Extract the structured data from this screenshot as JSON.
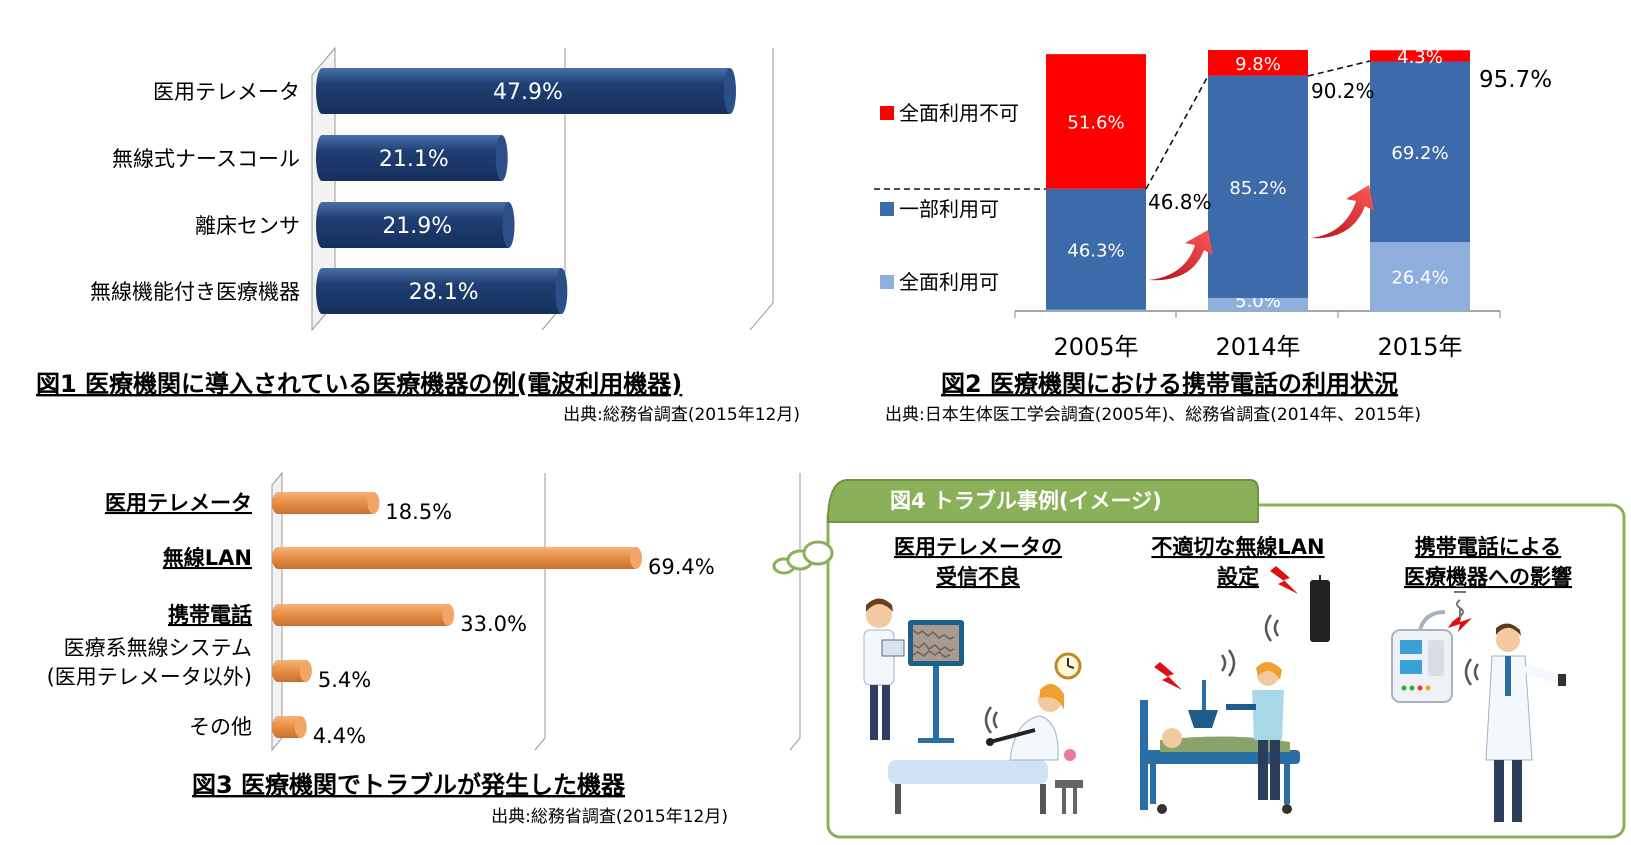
{
  "colors": {
    "navy": "#1f3f73",
    "navy_light": "#3a63a0",
    "orange": "#e8914a",
    "red": "#ff0000",
    "blue": "#3d6aa8",
    "light_blue": "#8eaedc",
    "green": "#8bb05a",
    "green_dark": "#6f9440"
  },
  "fig1": {
    "caption": "図1 医療機関に導入されている医療機器の例(電波利用機器)",
    "source": "出典:総務省調査(2015年12月)"
  },
  "fig2": {
    "caption": "図2 医療機関における携帯電話の利用状況",
    "source": "出典:日本生体医工学会調査(2005年)、総務省調査(2014年、2015年)",
    "annotations": [
      "46.8%",
      "90.2%",
      "95.7%"
    ]
  },
  "fig3": {
    "caption": "図3 医療機関でトラブルが発生した機器",
    "source": "出典:総務省調査(2015年12月)"
  },
  "fig4": {
    "title": "図4 トラブル事例(イメージ)",
    "cases": [
      {
        "line1": "医用テレメータの",
        "line2": "受信不良"
      },
      {
        "line1": "不適切な無線LAN",
        "line2": "設定"
      },
      {
        "line1": "携帯電話による",
        "line2": "医療機器への影響"
      }
    ]
  },
  "chart_data": [
    {
      "type": "bar",
      "orientation": "horizontal",
      "categories": [
        "医用テレメータ",
        "無線式ナースコール",
        "離床センサ",
        "無線機能付き医療機器"
      ],
      "values": [
        47.9,
        21.1,
        21.9,
        28.1
      ],
      "value_labels": [
        "47.9%",
        "21.1%",
        "21.9%",
        "28.1%"
      ],
      "xlim": [
        0,
        50
      ]
    },
    {
      "type": "bar",
      "stacked": true,
      "categories": [
        "2005年",
        "2014年",
        "2015年"
      ],
      "series": [
        {
          "name": "全面利用可",
          "values": [
            0.5,
            5.0,
            26.4
          ],
          "labels": [
            "0.5%",
            "5.0%",
            "26.4%"
          ]
        },
        {
          "name": "一部利用可",
          "values": [
            46.3,
            85.2,
            69.2
          ],
          "labels": [
            "46.3%",
            "85.2%",
            "69.2%"
          ]
        },
        {
          "name": "全面利用不可",
          "values": [
            51.6,
            9.8,
            4.3
          ],
          "labels": [
            "51.6%",
            "9.8%",
            "4.3%"
          ]
        }
      ],
      "ylim": [
        0,
        100
      ]
    },
    {
      "type": "bar",
      "orientation": "horizontal",
      "categories": [
        "医用テレメータ",
        "無線LAN",
        "携帯電話",
        "医療系無線システム(医用テレメータ以外)",
        "その他"
      ],
      "category_lines": [
        [
          "医用テレメータ"
        ],
        [
          "無線LAN"
        ],
        [
          "携帯電話"
        ],
        [
          "医療系無線システム",
          "(医用テレメータ以外)"
        ],
        [
          "その他"
        ]
      ],
      "values": [
        18.5,
        69.4,
        33.0,
        5.4,
        4.4
      ],
      "value_labels": [
        "18.5%",
        "69.4%",
        "33.0%",
        "5.4%",
        "4.4%"
      ],
      "xlim": [
        0,
        80
      ]
    }
  ]
}
